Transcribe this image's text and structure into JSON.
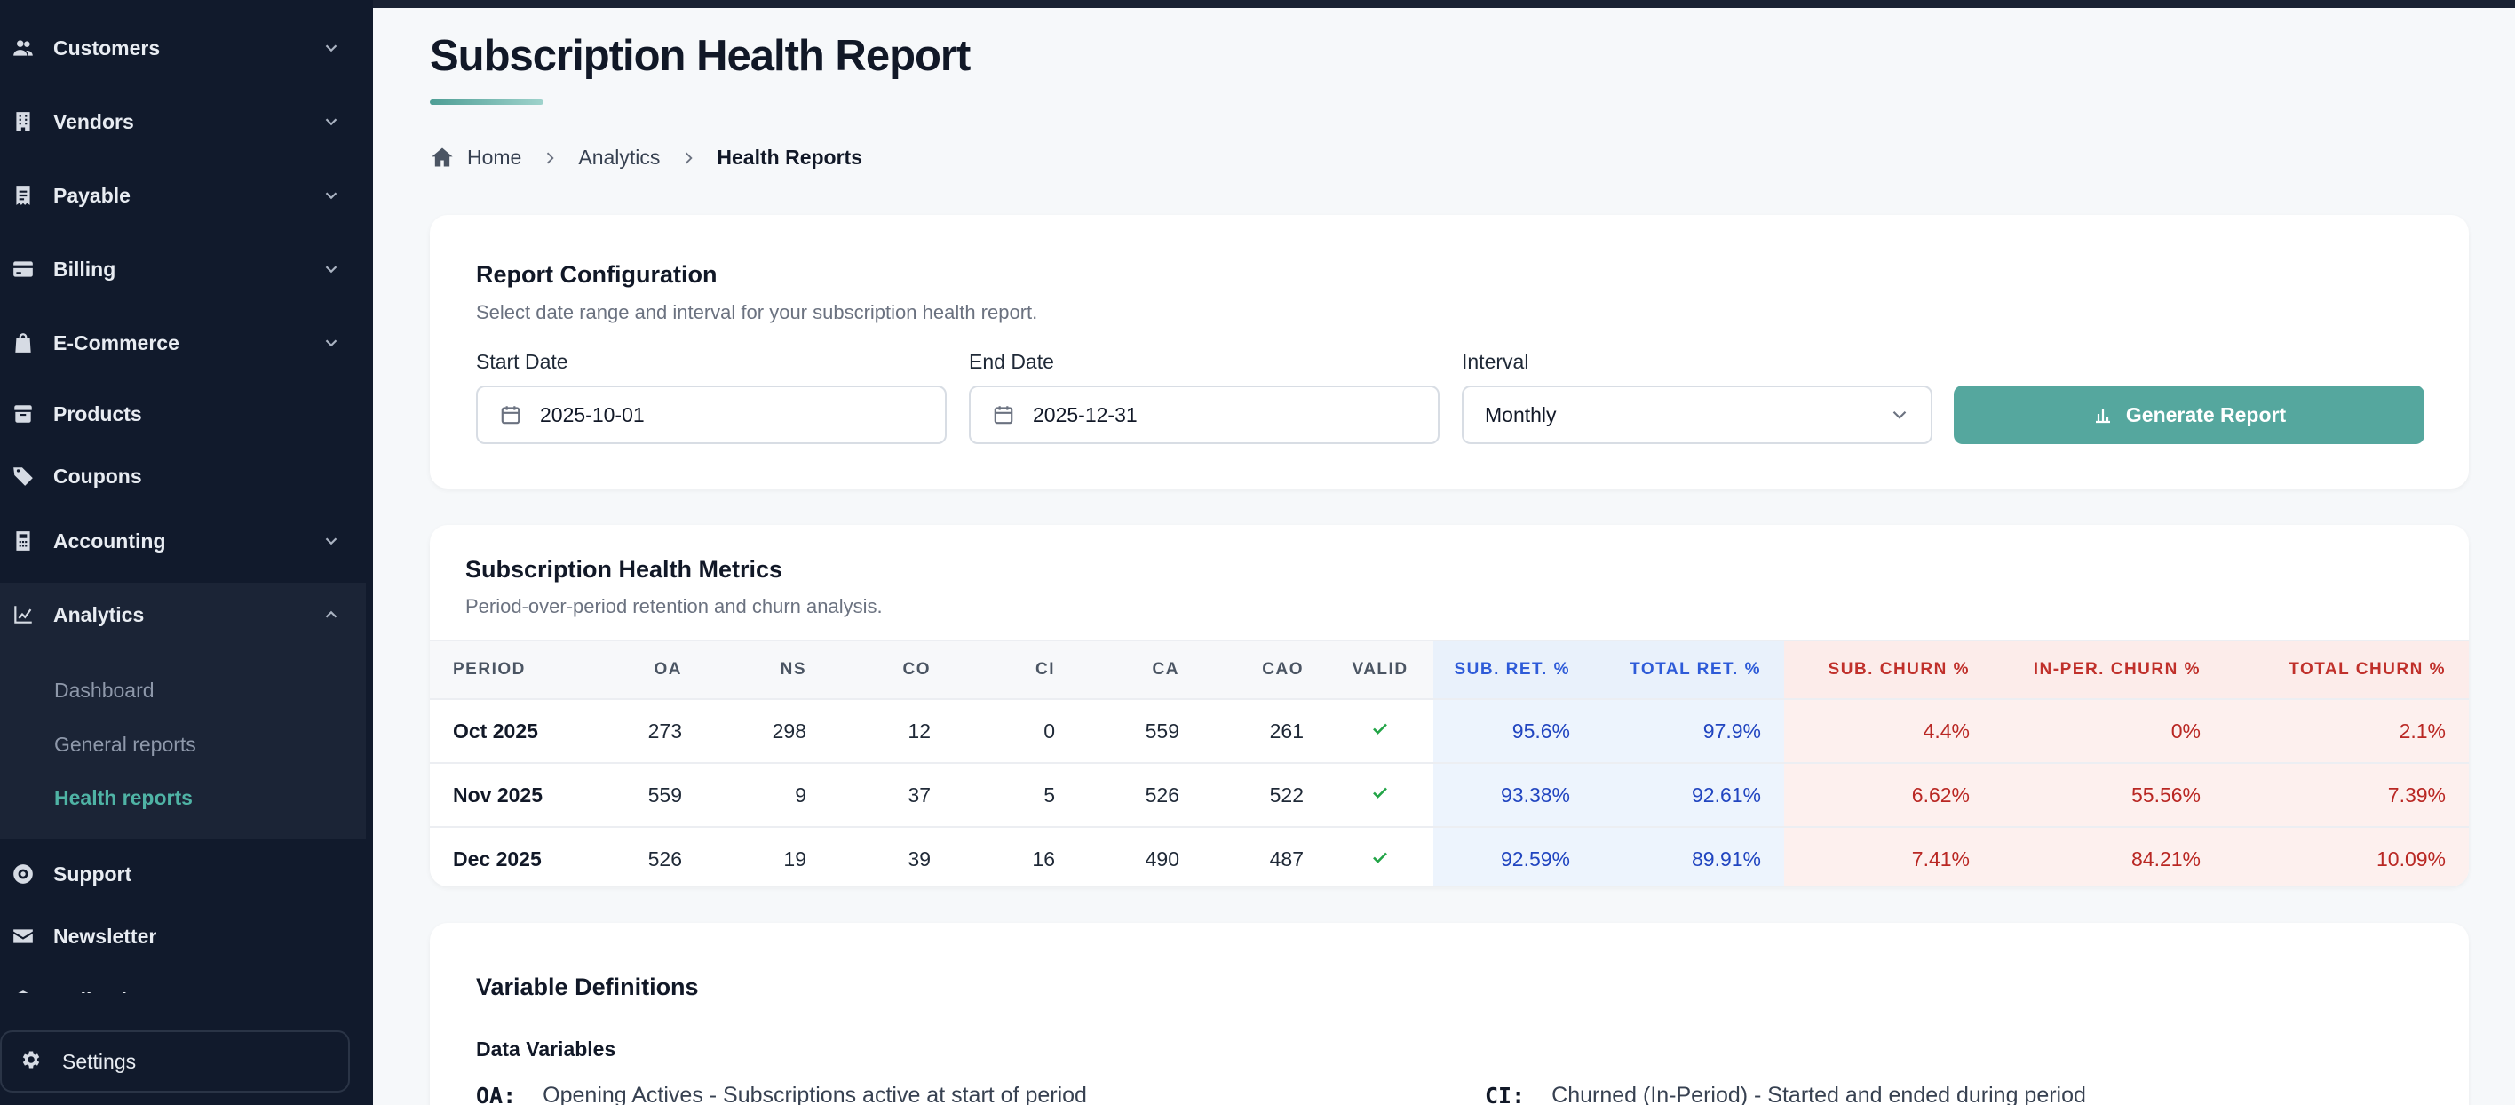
{
  "sidebar": {
    "items": [
      {
        "label": "Customers",
        "icon": "users-icon",
        "chevron": "down"
      },
      {
        "label": "Vendors",
        "icon": "building-icon",
        "chevron": "down"
      },
      {
        "label": "Payable",
        "icon": "receipt-icon",
        "chevron": "down"
      },
      {
        "label": "Billing",
        "icon": "credit-card-icon",
        "chevron": "down"
      },
      {
        "label": "E-Commerce",
        "icon": "shopping-bag-icon",
        "chevron": "down"
      },
      {
        "label": "Products",
        "icon": "box-icon",
        "chevron": ""
      },
      {
        "label": "Coupons",
        "icon": "tag-icon",
        "chevron": ""
      },
      {
        "label": "Accounting",
        "icon": "calculator-icon",
        "chevron": "down"
      },
      {
        "label": "Analytics",
        "icon": "chart-line-icon",
        "chevron": "up"
      },
      {
        "label": "Support",
        "icon": "lifebuoy-icon",
        "chevron": ""
      },
      {
        "label": "Newsletter",
        "icon": "envelope-icon",
        "chevron": ""
      },
      {
        "label": "Collections",
        "icon": "layers-icon",
        "chevron": "down"
      }
    ],
    "analytics_sub": [
      {
        "label": "Dashboard",
        "active": false
      },
      {
        "label": "General reports",
        "active": false
      },
      {
        "label": "Health reports",
        "active": true
      }
    ],
    "settings_label": "Settings"
  },
  "page": {
    "title": "Subscription Health Report",
    "breadcrumb": [
      "Home",
      "Analytics",
      "Health Reports"
    ]
  },
  "config": {
    "title": "Report Configuration",
    "subtitle": "Select date range and interval for your subscription health report.",
    "start_label": "Start Date",
    "start_value": "2025-10-01",
    "end_label": "End Date",
    "end_value": "2025-12-31",
    "interval_label": "Interval",
    "interval_value": "Monthly",
    "generate_label": "Generate Report"
  },
  "metrics": {
    "title": "Subscription Health Metrics",
    "subtitle": "Period-over-period retention and churn analysis.",
    "headers": [
      "PERIOD",
      "OA",
      "NS",
      "CO",
      "CI",
      "CA",
      "CAO",
      "VALID",
      "SUB. RET. %",
      "TOTAL RET. %",
      "SUB. CHURN %",
      "IN-PER. CHURN %",
      "TOTAL CHURN %"
    ],
    "rows": [
      [
        "Oct 2025",
        "273",
        "298",
        "12",
        "0",
        "559",
        "261",
        "valid",
        "95.6%",
        "97.9%",
        "4.4%",
        "0%",
        "2.1%"
      ],
      [
        "Nov 2025",
        "559",
        "9",
        "37",
        "5",
        "526",
        "522",
        "valid",
        "93.38%",
        "92.61%",
        "6.62%",
        "55.56%",
        "7.39%"
      ],
      [
        "Dec 2025",
        "526",
        "19",
        "39",
        "16",
        "490",
        "487",
        "valid",
        "92.59%",
        "89.91%",
        "7.41%",
        "84.21%",
        "10.09%"
      ]
    ]
  },
  "variables": {
    "title": "Variable Definitions",
    "section": "Data Variables",
    "defs": [
      {
        "key": "OA:",
        "text": "Opening Actives - Subscriptions active at start of period"
      },
      {
        "key": "CI:",
        "text": "Churned (In-Period) - Started and ended during period"
      }
    ]
  },
  "colors": {
    "sidebar_bg": "#111a2c",
    "accent": "#55a79e",
    "retention_blue": "#2145c0",
    "churn_red": "#b92723",
    "valid_green": "#22a447"
  }
}
